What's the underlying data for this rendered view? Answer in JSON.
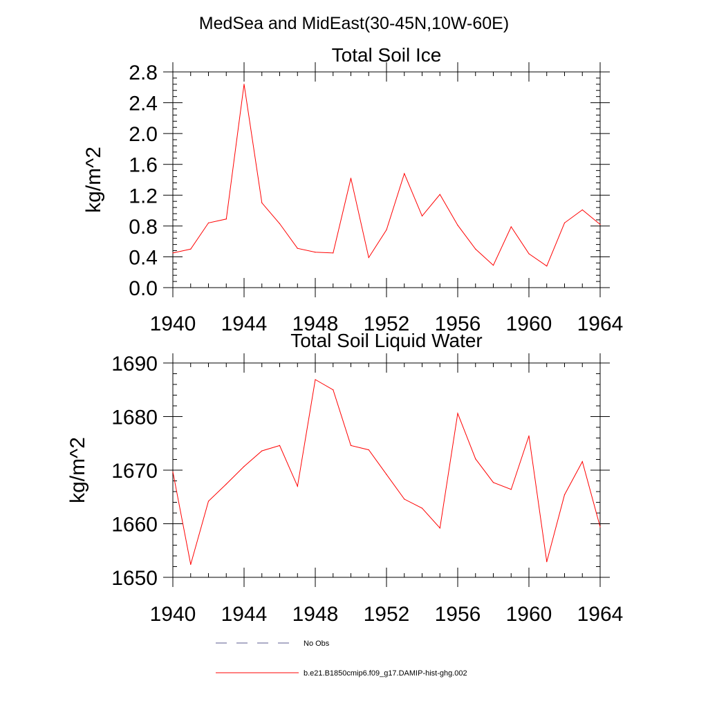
{
  "figure_title": "MedSea and MidEast(30-45N,10W-60E)",
  "colors": {
    "series": "#ff0000",
    "no_obs": "#5a5a8c",
    "axis": "#000000"
  },
  "legend": [
    {
      "label": "No Obs",
      "style": "dashed",
      "color": "#5a5a8c"
    },
    {
      "label": "b.e21.B1850cmip6.f09_g17.DAMIP-hist-ghg.002",
      "style": "solid",
      "color": "#ff0000"
    }
  ],
  "chart_data": [
    {
      "type": "line",
      "title": "Total Soil Ice",
      "ylabel": "kg/m^2",
      "xlabel": "",
      "xlim": [
        1940,
        1964
      ],
      "ylim": [
        0,
        2.8
      ],
      "xticks": [
        "1940",
        "1944",
        "1948",
        "1952",
        "1956",
        "1960",
        "1964"
      ],
      "yticks": [
        "0.0",
        "0.4",
        "0.8",
        "1.2",
        "1.6",
        "2.0",
        "2.4",
        "2.8"
      ],
      "x": [
        1940,
        1941,
        1942,
        1943,
        1944,
        1945,
        1946,
        1947,
        1948,
        1949,
        1950,
        1951,
        1952,
        1953,
        1954,
        1955,
        1956,
        1957,
        1958,
        1959,
        1960,
        1961,
        1962,
        1963,
        1964
      ],
      "series": [
        {
          "values": [
            0.45,
            0.5,
            0.84,
            0.89,
            2.64,
            1.1,
            0.83,
            0.51,
            0.46,
            0.45,
            1.42,
            0.39,
            0.75,
            1.48,
            0.93,
            1.21,
            0.81,
            0.5,
            0.29,
            0.79,
            0.44,
            0.28,
            0.84,
            1.01,
            0.82
          ]
        }
      ]
    },
    {
      "type": "line",
      "title": "Total Soil Liquid Water",
      "ylabel": "kg/m^2",
      "xlabel": "",
      "xlim": [
        1940,
        1964
      ],
      "ylim": [
        1650,
        1690
      ],
      "xticks": [
        "1940",
        "1944",
        "1948",
        "1952",
        "1956",
        "1960",
        "1964"
      ],
      "yticks": [
        "1650",
        "1660",
        "1670",
        "1680",
        "1690"
      ],
      "x": [
        1940,
        1941,
        1942,
        1943,
        1944,
        1945,
        1946,
        1947,
        1948,
        1949,
        1950,
        1951,
        1952,
        1953,
        1954,
        1955,
        1956,
        1957,
        1958,
        1959,
        1960,
        1961,
        1962,
        1963,
        1964
      ],
      "series": [
        {
          "values": [
            1669.7,
            1652.4,
            1664.2,
            1667.4,
            1670.7,
            1673.6,
            1674.6,
            1667.0,
            1686.9,
            1685.0,
            1674.6,
            1673.8,
            1669.2,
            1664.6,
            1662.9,
            1659.2,
            1680.6,
            1672.1,
            1667.7,
            1666.4,
            1676.4,
            1652.9,
            1665.4,
            1671.6,
            1659.4
          ]
        }
      ]
    }
  ]
}
